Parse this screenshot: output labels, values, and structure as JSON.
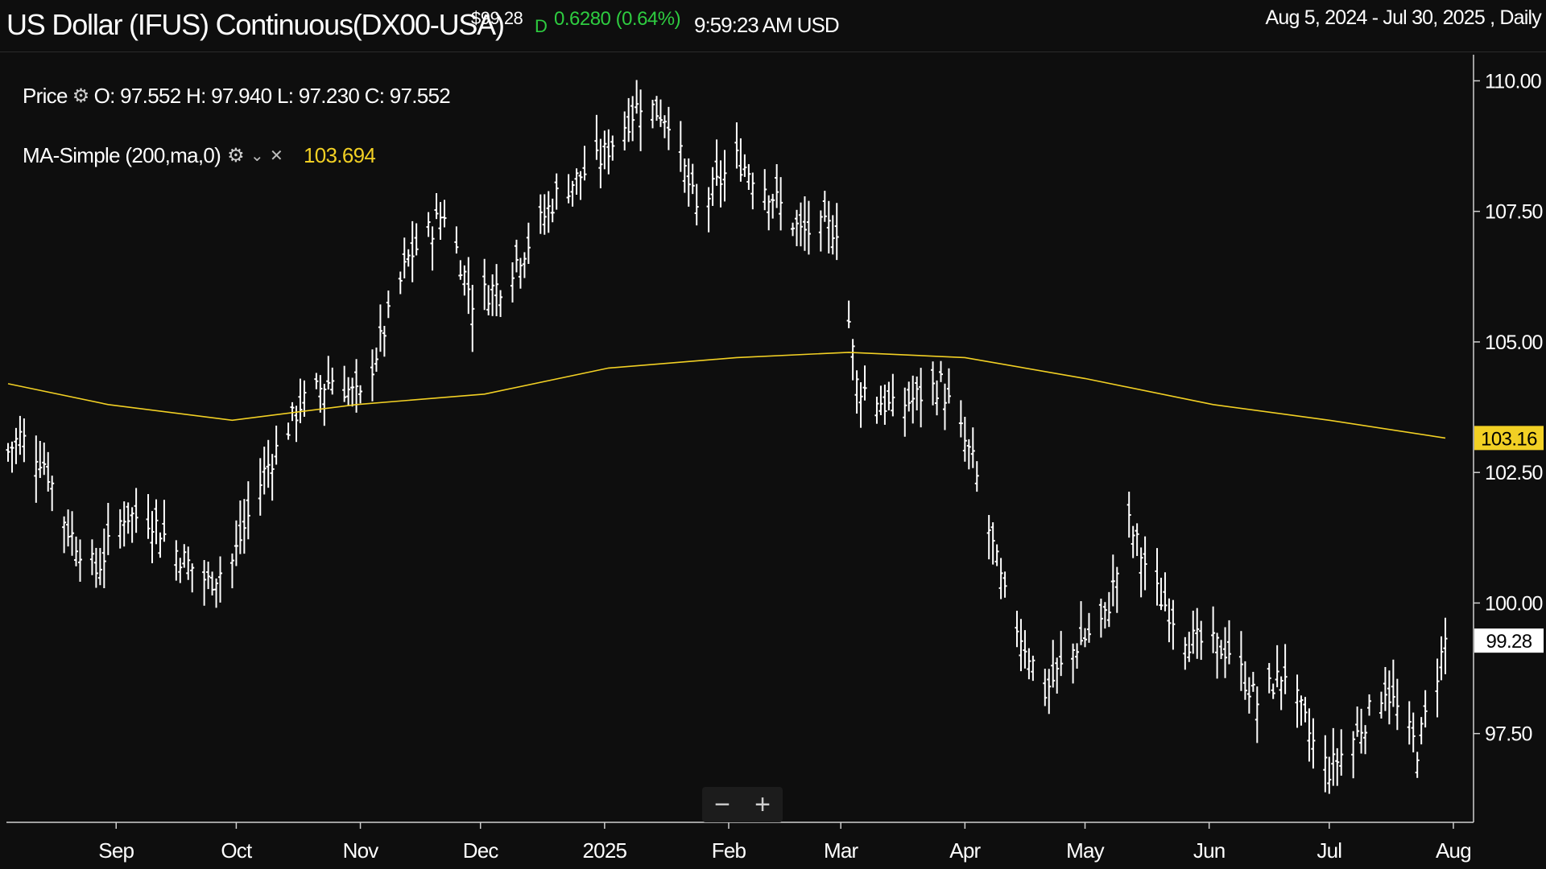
{
  "header": {
    "title": "US Dollar (IFUS) Continuous(DX00-USA)",
    "last_price": "$99.28",
    "period_marker": "D",
    "change": "0.6280 (0.64%)",
    "time": "9:59:23 AM USD",
    "date_range": "Aug 5, 2024 - Jul 30, 2025 , Daily"
  },
  "legend": {
    "price_label": "Price",
    "ohlc": "O: 97.552 H: 97.940 L: 97.230 C: 97.552",
    "ma_label": "MA-Simple (200,ma,0)",
    "ma_value": "103.694"
  },
  "controls": {
    "zoom_out": "−",
    "zoom_in": "+"
  },
  "colors": {
    "background": "#0e0e0e",
    "bars": "#ffffff",
    "ma_line": "#f2d024",
    "change_up": "#2ecc40"
  },
  "chart_data": {
    "type": "ohlc",
    "ylim": [
      95.8,
      110.5
    ],
    "y_ticks": [
      97.5,
      100.0,
      102.5,
      105.0,
      107.5,
      110.0
    ],
    "y_tick_labels": [
      "97.50",
      "100.00",
      "102.50",
      "105.00",
      "107.50",
      "110.00"
    ],
    "x_labels": [
      {
        "label": "Sep",
        "date": "2024-09-01"
      },
      {
        "label": "Oct",
        "date": "2024-10-01"
      },
      {
        "label": "Nov",
        "date": "2024-11-01"
      },
      {
        "label": "Dec",
        "date": "2024-12-01"
      },
      {
        "label": "2025",
        "date": "2025-01-01"
      },
      {
        "label": "Feb",
        "date": "2025-02-01"
      },
      {
        "label": "Mar",
        "date": "2025-03-01"
      },
      {
        "label": "Apr",
        "date": "2025-04-01"
      },
      {
        "label": "May",
        "date": "2025-05-01"
      },
      {
        "label": "Jun",
        "date": "2025-06-01"
      },
      {
        "label": "Jul",
        "date": "2025-07-01"
      },
      {
        "label": "Aug",
        "date": "2025-08-01"
      }
    ],
    "x_range": [
      "2024-08-05",
      "2025-07-30"
    ],
    "close_key_points": [
      {
        "date": "2024-08-05",
        "close": 102.9
      },
      {
        "date": "2024-08-08",
        "close": 103.2
      },
      {
        "date": "2024-08-14",
        "close": 102.7
      },
      {
        "date": "2024-08-20",
        "close": 101.4
      },
      {
        "date": "2024-08-27",
        "close": 100.6
      },
      {
        "date": "2024-09-03",
        "close": 101.7
      },
      {
        "date": "2024-09-10",
        "close": 101.6
      },
      {
        "date": "2024-09-17",
        "close": 100.9
      },
      {
        "date": "2024-09-24",
        "close": 100.4
      },
      {
        "date": "2024-09-30",
        "close": 100.8
      },
      {
        "date": "2024-10-08",
        "close": 102.5
      },
      {
        "date": "2024-10-17",
        "close": 103.8
      },
      {
        "date": "2024-10-25",
        "close": 104.3
      },
      {
        "date": "2024-11-01",
        "close": 103.9
      },
      {
        "date": "2024-11-06",
        "close": 105.0
      },
      {
        "date": "2024-11-13",
        "close": 106.6
      },
      {
        "date": "2024-11-22",
        "close": 107.5
      },
      {
        "date": "2024-11-29",
        "close": 105.8
      },
      {
        "date": "2024-12-06",
        "close": 106.1
      },
      {
        "date": "2024-12-13",
        "close": 106.9
      },
      {
        "date": "2024-12-20",
        "close": 107.8
      },
      {
        "date": "2024-12-31",
        "close": 108.5
      },
      {
        "date": "2025-01-10",
        "close": 109.6
      },
      {
        "date": "2025-01-17",
        "close": 109.3
      },
      {
        "date": "2025-01-24",
        "close": 107.5
      },
      {
        "date": "2025-02-03",
        "close": 108.5
      },
      {
        "date": "2025-02-10",
        "close": 108.0
      },
      {
        "date": "2025-02-19",
        "close": 107.1
      },
      {
        "date": "2025-02-28",
        "close": 107.2
      },
      {
        "date": "2025-03-05",
        "close": 104.2
      },
      {
        "date": "2025-03-14",
        "close": 103.7
      },
      {
        "date": "2025-03-26",
        "close": 104.2
      },
      {
        "date": "2025-04-03",
        "close": 102.7
      },
      {
        "date": "2025-04-11",
        "close": 100.1
      },
      {
        "date": "2025-04-21",
        "close": 98.3
      },
      {
        "date": "2025-04-29",
        "close": 99.2
      },
      {
        "date": "2025-05-06",
        "close": 99.7
      },
      {
        "date": "2025-05-12",
        "close": 101.5
      },
      {
        "date": "2025-05-19",
        "close": 100.2
      },
      {
        "date": "2025-05-27",
        "close": 99.3
      },
      {
        "date": "2025-06-06",
        "close": 99.1
      },
      {
        "date": "2025-06-13",
        "close": 98.1
      },
      {
        "date": "2025-06-20",
        "close": 98.7
      },
      {
        "date": "2025-06-27",
        "close": 97.3
      },
      {
        "date": "2025-07-01",
        "close": 96.8
      },
      {
        "date": "2025-07-08",
        "close": 97.5
      },
      {
        "date": "2025-07-15",
        "close": 98.4
      },
      {
        "date": "2025-07-23",
        "close": 97.2
      },
      {
        "date": "2025-07-30",
        "close": 99.28
      }
    ],
    "series": [
      {
        "name": "MA-Simple (200,ma,0)",
        "type": "line",
        "points": [
          {
            "date": "2024-08-05",
            "value": 104.2
          },
          {
            "date": "2024-08-30",
            "value": 103.8
          },
          {
            "date": "2024-09-30",
            "value": 103.5
          },
          {
            "date": "2024-10-31",
            "value": 103.8
          },
          {
            "date": "2024-12-02",
            "value": 104.0
          },
          {
            "date": "2025-01-02",
            "value": 104.5
          },
          {
            "date": "2025-02-03",
            "value": 104.7
          },
          {
            "date": "2025-03-03",
            "value": 104.8
          },
          {
            "date": "2025-04-01",
            "value": 104.7
          },
          {
            "date": "2025-05-01",
            "value": 104.3
          },
          {
            "date": "2025-06-02",
            "value": 103.8
          },
          {
            "date": "2025-07-01",
            "value": 103.5
          },
          {
            "date": "2025-07-30",
            "value": 103.16
          }
        ]
      }
    ],
    "current_price_label": "99.28",
    "ma_axis_label": "103.16"
  }
}
